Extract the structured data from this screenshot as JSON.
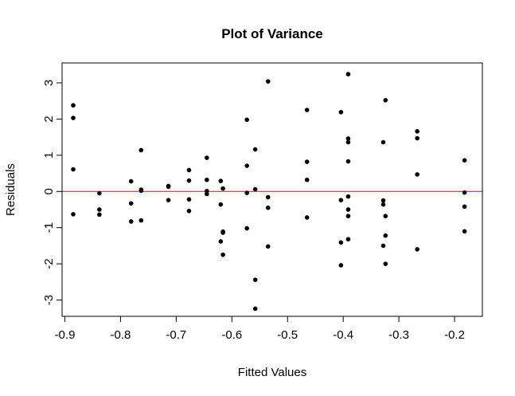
{
  "chart_data": {
    "type": "scatter",
    "title": "Plot of Variance",
    "xlabel": "Fitted Values",
    "ylabel": "Residuals",
    "xlim": [
      -0.905,
      -0.15
    ],
    "ylim": [
      -3.45,
      3.55
    ],
    "x_ticks": [
      -0.9,
      -0.8,
      -0.7,
      -0.6,
      -0.5,
      -0.4,
      -0.3,
      -0.2
    ],
    "x_tick_labels": [
      "-0.9",
      "-0.8",
      "-0.7",
      "-0.6",
      "-0.5",
      "-0.4",
      "-0.3",
      "-0.2"
    ],
    "y_ticks": [
      -3,
      -2,
      -1,
      0,
      1,
      2,
      3
    ],
    "y_tick_labels": [
      "-3",
      "-2",
      "-1",
      "0",
      "1",
      "2",
      "3"
    ],
    "grid": false,
    "reference_line": {
      "y": 0,
      "color": "#ff0000"
    },
    "point_color": "#000000",
    "points": [
      [
        -0.885,
        2.38
      ],
      [
        -0.885,
        2.03
      ],
      [
        -0.885,
        0.61
      ],
      [
        -0.885,
        -0.63
      ],
      [
        -0.838,
        -0.05
      ],
      [
        -0.838,
        -0.5
      ],
      [
        -0.838,
        -0.64
      ],
      [
        -0.781,
        0.28
      ],
      [
        -0.781,
        -0.33
      ],
      [
        -0.781,
        -0.83
      ],
      [
        -0.763,
        1.14
      ],
      [
        -0.763,
        0.05
      ],
      [
        -0.763,
        0.02
      ],
      [
        -0.763,
        -0.8
      ],
      [
        -0.714,
        0.15
      ],
      [
        -0.714,
        0.13
      ],
      [
        -0.714,
        -0.24
      ],
      [
        -0.677,
        0.59
      ],
      [
        -0.677,
        0.3
      ],
      [
        -0.677,
        -0.22
      ],
      [
        -0.677,
        -0.54
      ],
      [
        -0.645,
        0.93
      ],
      [
        -0.645,
        0.32
      ],
      [
        -0.645,
        0.01
      ],
      [
        -0.645,
        -0.07
      ],
      [
        -0.62,
        0.29
      ],
      [
        -0.62,
        -0.36
      ],
      [
        -0.62,
        -1.38
      ],
      [
        -0.616,
        0.08
      ],
      [
        -0.616,
        -1.11
      ],
      [
        -0.616,
        -1.14
      ],
      [
        -0.616,
        -1.75
      ],
      [
        -0.573,
        1.98
      ],
      [
        -0.573,
        0.71
      ],
      [
        -0.573,
        -0.04
      ],
      [
        -0.573,
        -1.02
      ],
      [
        -0.558,
        1.16
      ],
      [
        -0.558,
        0.06
      ],
      [
        -0.558,
        -2.44
      ],
      [
        -0.558,
        -3.24
      ],
      [
        -0.535,
        3.04
      ],
      [
        -0.535,
        -0.16
      ],
      [
        -0.535,
        -0.45
      ],
      [
        -0.535,
        -1.52
      ],
      [
        -0.465,
        2.25
      ],
      [
        -0.465,
        0.82
      ],
      [
        -0.465,
        0.32
      ],
      [
        -0.465,
        -0.72
      ],
      [
        -0.404,
        2.19
      ],
      [
        -0.404,
        -0.24
      ],
      [
        -0.404,
        -1.41
      ],
      [
        -0.404,
        -2.04
      ],
      [
        -0.391,
        3.24
      ],
      [
        -0.391,
        1.46
      ],
      [
        -0.391,
        1.36
      ],
      [
        -0.391,
        0.83
      ],
      [
        -0.391,
        -0.14
      ],
      [
        -0.391,
        -0.5
      ],
      [
        -0.391,
        -0.68
      ],
      [
        -0.391,
        -1.32
      ],
      [
        -0.328,
        1.36
      ],
      [
        -0.328,
        -0.25
      ],
      [
        -0.328,
        -0.36
      ],
      [
        -0.328,
        -1.5
      ],
      [
        -0.324,
        2.52
      ],
      [
        -0.324,
        -0.68
      ],
      [
        -0.324,
        -1.22
      ],
      [
        -0.324,
        -2.0
      ],
      [
        -0.267,
        1.66
      ],
      [
        -0.267,
        1.47
      ],
      [
        -0.267,
        0.47
      ],
      [
        -0.267,
        -1.6
      ],
      [
        -0.182,
        0.86
      ],
      [
        -0.182,
        -0.03
      ],
      [
        -0.182,
        -0.42
      ],
      [
        -0.182,
        -1.1
      ]
    ]
  }
}
